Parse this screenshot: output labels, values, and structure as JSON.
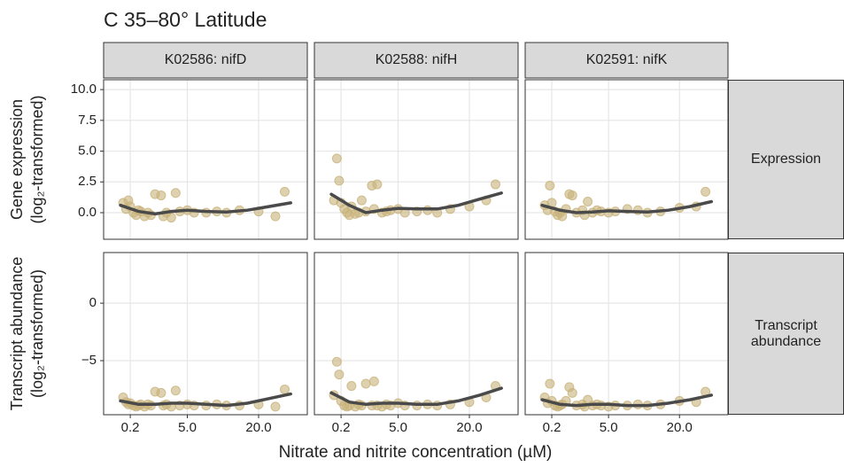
{
  "chart_data": {
    "type": "scatter",
    "title": "C  35–80° Latitude",
    "x_label": "Nitrate and nitrite concentration (µM)",
    "x_scale": "sqrt",
    "xlim": [
      0,
      36
    ],
    "xticks": [
      0.2,
      {
        "value": 5,
        "label": "5.0"
      },
      {
        "value": 20,
        "label": "20.0"
      }
    ],
    "grid": true,
    "point_color": "#c8b27a",
    "line_color": "#4a4a4a",
    "columns": [
      "K02586: nifD",
      "K02588: nifH",
      "K02591: nifK"
    ],
    "rows": [
      {
        "label": "Expression",
        "y_label": [
          "Gene expression",
          "(log₂-transformed)"
        ],
        "ylim": [
          -2.16,
          10.8
        ],
        "yticks": [
          {
            "value": 0,
            "label": "0.0"
          },
          2.5,
          {
            "value": 5,
            "label": "5.0"
          },
          7.5,
          {
            "value": 10,
            "label": "10.0"
          }
        ]
      },
      {
        "label": "Transcript abundance",
        "y_label": [
          "Transcript abundance",
          "(log₂-transformed)"
        ],
        "ylim": [
          -9.7,
          4.4
        ],
        "yticks": [
          {
            "value": -5,
            "label": "−5"
          },
          0
        ]
      }
    ],
    "x": [
      0.05,
      0.1,
      0.15,
      0.2,
      0.3,
      0.4,
      0.5,
      0.6,
      0.8,
      1.0,
      1.2,
      1.5,
      2,
      2.2,
      2.5,
      3,
      3.5,
      4,
      5,
      6,
      8,
      10,
      12,
      15,
      20,
      25,
      28
    ],
    "fit_x": [
      0.02,
      0.5,
      1.5,
      3,
      5,
      8,
      12,
      17,
      23,
      30
    ],
    "panels": [
      {
        "row": 0,
        "col": 0,
        "values": [
          0.8,
          0.3,
          1.0,
          0.5,
          0.0,
          -0.2,
          0.2,
          0.1,
          -0.3,
          0.0,
          -0.2,
          1.5,
          1.4,
          -0.3,
          0.0,
          -0.4,
          1.6,
          0.1,
          0.2,
          0.0,
          0.0,
          0.1,
          0.0,
          0.2,
          0.1,
          -0.3,
          1.7
        ],
        "fit": [
          0.6,
          0.1,
          -0.1,
          0.1,
          0.2,
          0.1,
          0.05,
          0.2,
          0.5,
          0.8
        ]
      },
      {
        "row": 0,
        "col": 1,
        "values": [
          1.0,
          4.4,
          2.6,
          0.8,
          0.3,
          0.0,
          -0.2,
          0.5,
          -0.1,
          0.0,
          1.0,
          0.1,
          2.2,
          0.3,
          2.3,
          0.0,
          0.1,
          0.2,
          0.3,
          0.0,
          0.1,
          0.2,
          0.0,
          0.3,
          0.5,
          1.0,
          2.3
        ],
        "fit": [
          1.5,
          0.6,
          0.0,
          0.2,
          0.35,
          0.3,
          0.3,
          0.6,
          1.1,
          1.6
        ]
      },
      {
        "row": 0,
        "col": 2,
        "values": [
          0.6,
          0.2,
          2.2,
          0.8,
          0.1,
          -0.2,
          0.0,
          -0.3,
          0.3,
          1.5,
          1.4,
          0.0,
          0.2,
          -0.2,
          0.9,
          0.0,
          0.2,
          0.1,
          0.0,
          0.1,
          0.3,
          0.2,
          0.0,
          0.1,
          0.4,
          0.5,
          1.7
        ],
        "fit": [
          0.6,
          0.2,
          0.0,
          0.05,
          0.15,
          0.1,
          0.05,
          0.2,
          0.5,
          0.9
        ]
      },
      {
        "row": 1,
        "col": 0,
        "values": [
          -8.2,
          -8.6,
          -8.8,
          -8.7,
          -8.9,
          -9.0,
          -8.9,
          -8.8,
          -9.0,
          -8.8,
          -8.9,
          -7.7,
          -7.8,
          -8.9,
          -8.8,
          -9.0,
          -7.6,
          -8.9,
          -8.8,
          -8.9,
          -8.9,
          -8.8,
          -8.9,
          -8.9,
          -8.8,
          -9.0,
          -7.5
        ],
        "fit": [
          -8.5,
          -8.8,
          -8.8,
          -8.7,
          -8.7,
          -8.8,
          -8.9,
          -8.7,
          -8.3,
          -7.9
        ]
      },
      {
        "row": 1,
        "col": 1,
        "values": [
          -8.0,
          -5.1,
          -6.2,
          -8.5,
          -8.9,
          -9.0,
          -8.9,
          -7.2,
          -9.0,
          -8.8,
          -8.9,
          -7.0,
          -8.9,
          -6.8,
          -8.9,
          -9.0,
          -8.8,
          -8.9,
          -8.7,
          -8.9,
          -8.9,
          -8.8,
          -8.9,
          -8.8,
          -8.6,
          -8.2,
          -7.2
        ],
        "fit": [
          -7.8,
          -8.6,
          -8.8,
          -8.7,
          -8.7,
          -8.8,
          -8.8,
          -8.5,
          -8.0,
          -7.4
        ]
      },
      {
        "row": 1,
        "col": 2,
        "values": [
          -8.2,
          -8.7,
          -7.0,
          -8.5,
          -8.9,
          -9.0,
          -8.9,
          -8.8,
          -8.5,
          -7.3,
          -7.8,
          -8.9,
          -8.8,
          -9.0,
          -8.4,
          -8.9,
          -8.8,
          -8.9,
          -9.0,
          -8.9,
          -8.9,
          -8.8,
          -8.9,
          -8.8,
          -8.5,
          -8.6,
          -7.7
        ],
        "fit": [
          -8.4,
          -8.8,
          -8.9,
          -8.8,
          -8.8,
          -8.9,
          -8.9,
          -8.7,
          -8.4,
          -8.0
        ]
      }
    ]
  }
}
